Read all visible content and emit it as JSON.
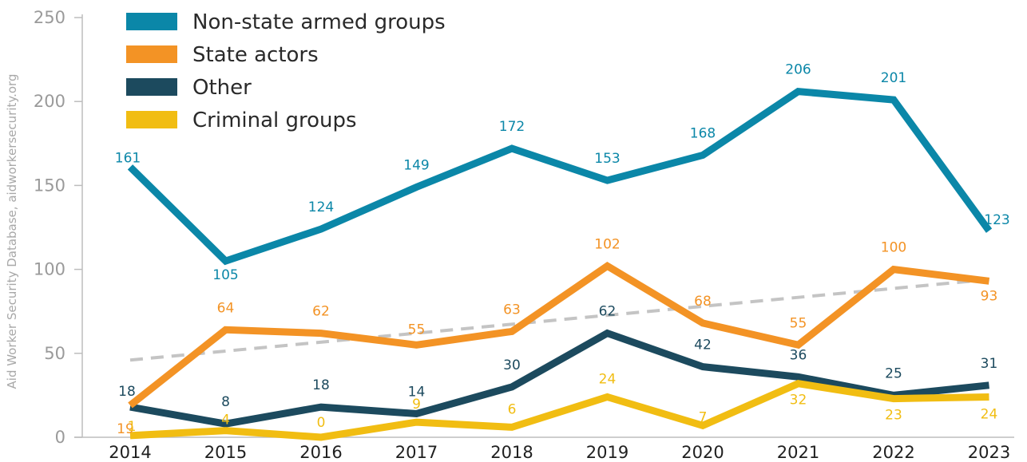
{
  "source_text": "Aid Worker Security Database, aidworkersecurity.org",
  "chart_data": {
    "type": "line",
    "title": "",
    "xlabel": "",
    "ylabel": "",
    "categories": [
      "2014",
      "2015",
      "2016",
      "2017",
      "2018",
      "2019",
      "2020",
      "2021",
      "2022",
      "2023"
    ],
    "ylim": [
      0,
      250
    ],
    "yticks": [
      0,
      50,
      100,
      150,
      200,
      250
    ],
    "grid": false,
    "legend_position": "top-left",
    "series": [
      {
        "name": "Non-state armed groups",
        "color": "#0b87a8",
        "values": [
          161,
          105,
          124,
          149,
          172,
          153,
          168,
          206,
          201,
          123
        ]
      },
      {
        "name": "State actors",
        "color": "#f39325",
        "values": [
          19,
          64,
          62,
          55,
          63,
          102,
          68,
          55,
          100,
          93
        ]
      },
      {
        "name": "Other",
        "color": "#1c4a5e",
        "values": [
          18,
          8,
          18,
          14,
          30,
          62,
          42,
          36,
          25,
          31
        ]
      },
      {
        "name": "Criminal groups",
        "color": "#f1bd12",
        "values": [
          1,
          4,
          0,
          9,
          6,
          24,
          7,
          32,
          23,
          24
        ]
      }
    ],
    "trendline": {
      "color": "#c4c4c4",
      "style": "dashed",
      "start": 46,
      "end": 94
    }
  }
}
